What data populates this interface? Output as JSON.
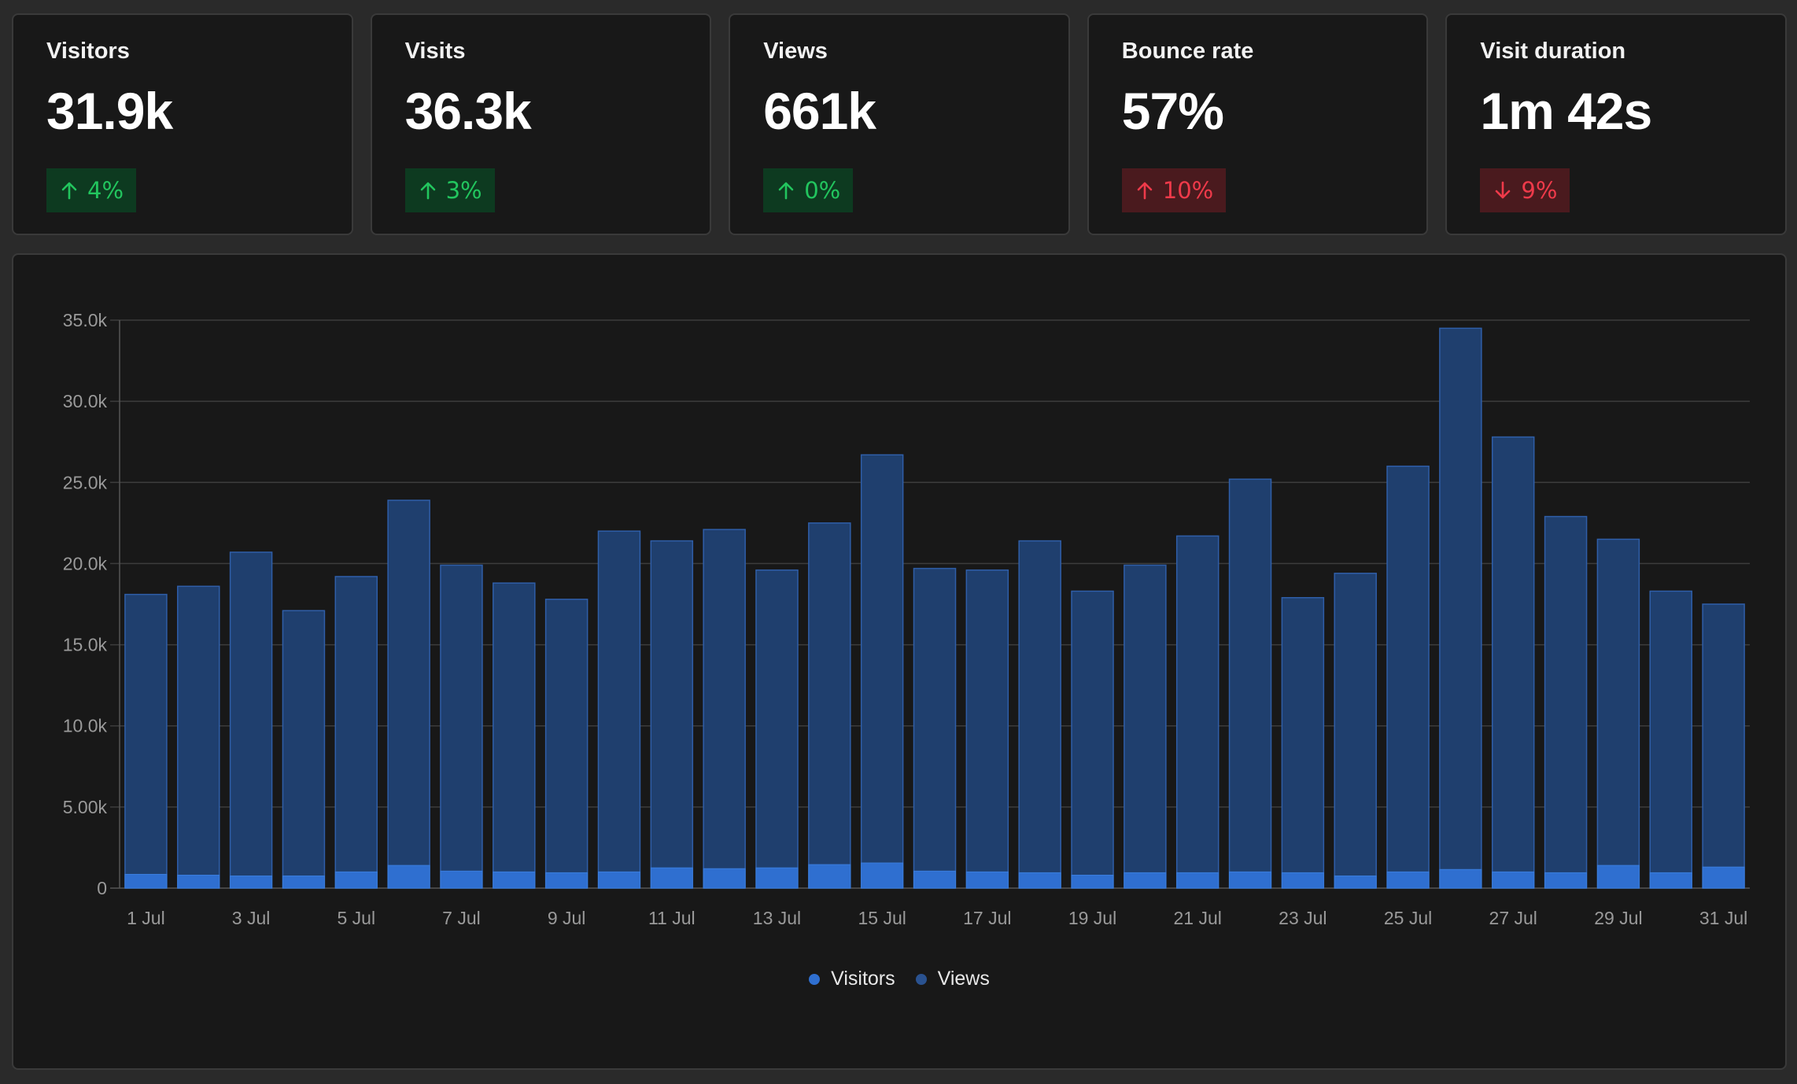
{
  "metrics": [
    {
      "label": "Visitors",
      "value": "31.9k",
      "change": "4%",
      "direction": "up",
      "status": "good"
    },
    {
      "label": "Visits",
      "value": "36.3k",
      "change": "3%",
      "direction": "up",
      "status": "good"
    },
    {
      "label": "Views",
      "value": "661k",
      "change": "0%",
      "direction": "up",
      "status": "good"
    },
    {
      "label": "Bounce rate",
      "value": "57%",
      "change": "10%",
      "direction": "up",
      "status": "bad"
    },
    {
      "label": "Visit duration",
      "value": "1m 42s",
      "change": "9%",
      "direction": "down",
      "status": "bad"
    }
  ],
  "colors": {
    "good_text": "#22c55e",
    "good_bg": "#0d3a20",
    "bad_text": "#ef3a4a",
    "bad_bg": "#4a1a1e",
    "visitors": "#2f6fd0",
    "views": "#1f3f6e",
    "views_edge": "#2f5ea8"
  },
  "chart_data": {
    "type": "bar",
    "stacked_overlay": true,
    "categories": [
      "1 Jul",
      "2 Jul",
      "3 Jul",
      "4 Jul",
      "5 Jul",
      "6 Jul",
      "7 Jul",
      "8 Jul",
      "9 Jul",
      "10 Jul",
      "11 Jul",
      "12 Jul",
      "13 Jul",
      "14 Jul",
      "15 Jul",
      "16 Jul",
      "17 Jul",
      "18 Jul",
      "19 Jul",
      "20 Jul",
      "21 Jul",
      "22 Jul",
      "23 Jul",
      "24 Jul",
      "25 Jul",
      "26 Jul",
      "27 Jul",
      "28 Jul",
      "29 Jul",
      "30 Jul",
      "31 Jul"
    ],
    "x_tick_labels": [
      "1 Jul",
      "3 Jul",
      "5 Jul",
      "7 Jul",
      "9 Jul",
      "11 Jul",
      "13 Jul",
      "15 Jul",
      "17 Jul",
      "19 Jul",
      "21 Jul",
      "23 Jul",
      "25 Jul",
      "27 Jul",
      "29 Jul",
      "31 Jul"
    ],
    "y_ticks": [
      0,
      5000,
      10000,
      15000,
      20000,
      25000,
      30000,
      35000
    ],
    "y_tick_labels": [
      "0",
      "5.00k",
      "10.0k",
      "15.0k",
      "20.0k",
      "25.0k",
      "30.0k",
      "35.0k"
    ],
    "ylim": [
      0,
      35000
    ],
    "grid": true,
    "legend_position": "bottom-center",
    "series": [
      {
        "name": "Visitors",
        "values": [
          850,
          800,
          750,
          750,
          1000,
          1400,
          1050,
          1000,
          950,
          1000,
          1250,
          1200,
          1250,
          1450,
          1550,
          1050,
          1000,
          950,
          800,
          950,
          950,
          1000,
          950,
          750,
          1000,
          1150,
          1000,
          950,
          1400,
          950,
          1300
        ]
      },
      {
        "name": "Views",
        "values": [
          18100,
          18600,
          20700,
          17100,
          19200,
          23900,
          19900,
          18800,
          17800,
          22000,
          21400,
          22100,
          19600,
          22500,
          26700,
          19700,
          19600,
          21400,
          18300,
          19900,
          21700,
          25200,
          17900,
          19400,
          26000,
          34500,
          27800,
          22900,
          21500,
          18300,
          17500
        ]
      }
    ]
  }
}
